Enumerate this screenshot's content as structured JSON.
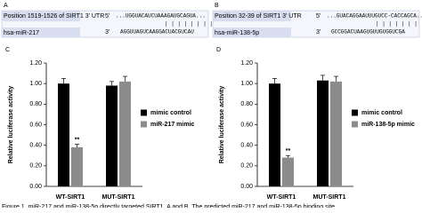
{
  "panels": [
    {
      "label": "A",
      "target_label": "Position 1519-1526 of SIRT1 3' UTR",
      "target_end": "5'",
      "target_seq": "...UGGUACAUCUAAAGAUGCAGUA...",
      "pairing": "| | | | | | | |",
      "mirna_label": "hsa-miR-217",
      "mirna_end": "3'",
      "mirna_seq": "AGGUUAGUCAAGGACUACGUCAU"
    },
    {
      "label": "B",
      "target_label": "Position 32-39 of SIRT1 3' UTR",
      "target_end": "5'",
      "target_seq": "...GUACAGGAAUUUGUCC-CACCAGCA...",
      "pairing": "| | | | | | |",
      "mirna_label": "hsa-miR-138-5p",
      "mirna_end": "3'",
      "mirna_seq": "GCCGGACUAAGUGUUGUGGUCGA"
    }
  ],
  "chart_data": [
    {
      "type": "bar",
      "panel_label": "C",
      "y_label": "Relative luciferase activity",
      "categories": [
        "WT-SIRT1",
        "MUT-SIRT1"
      ],
      "series": [
        {
          "name": "mimic control",
          "color": "#000000",
          "values": [
            1.0,
            0.98
          ],
          "errors": [
            0.05,
            0.04
          ]
        },
        {
          "name": "miR-217 mimic",
          "color": "#8c8c8c",
          "values": [
            0.38,
            1.02
          ],
          "errors": [
            0.03,
            0.05
          ]
        }
      ],
      "ylim": [
        0,
        1.2
      ],
      "yticks": [
        {
          "value": 0,
          "label": "0.00"
        },
        {
          "value": 0.2,
          "label": "0.20"
        },
        {
          "value": 0.4,
          "label": "0.40"
        },
        {
          "value": 0.6,
          "label": "0.60"
        },
        {
          "value": 0.8,
          "label": "0.80"
        },
        {
          "value": 1.0,
          "label": "1.00"
        },
        {
          "value": 1.2,
          "label": "1.20"
        }
      ],
      "annotations": [
        {
          "text": "**"
        }
      ],
      "legend": "right"
    },
    {
      "type": "bar",
      "panel_label": "D",
      "y_label": "Relative luciferase activity",
      "categories": [
        "WT-SIRT1",
        "MUT-SIRT1"
      ],
      "series": [
        {
          "name": "mimic control",
          "color": "#000000",
          "values": [
            1.0,
            1.03
          ],
          "errors": [
            0.05,
            0.05
          ]
        },
        {
          "name": "miR-138-5p mimic",
          "color": "#8c8c8c",
          "values": [
            0.28,
            1.02
          ],
          "errors": [
            0.02,
            0.05
          ]
        }
      ],
      "ylim": [
        0,
        1.2
      ],
      "yticks": [
        {
          "value": 0,
          "label": "0.00"
        },
        {
          "value": 0.2,
          "label": "0.20"
        },
        {
          "value": 0.4,
          "label": "0.40"
        },
        {
          "value": 0.6,
          "label": "0.60"
        },
        {
          "value": 0.8,
          "label": "0.80"
        },
        {
          "value": 1.0,
          "label": "1.00"
        },
        {
          "value": 1.2,
          "label": "1.20"
        }
      ],
      "annotations": [
        {
          "text": "**"
        }
      ],
      "legend": "right"
    }
  ],
  "caption": "Figure 1. miR-217 and miR-138-5p directly targeted SIRT1. A and B. The predicted miR-217 and miR-138-5p binding site"
}
